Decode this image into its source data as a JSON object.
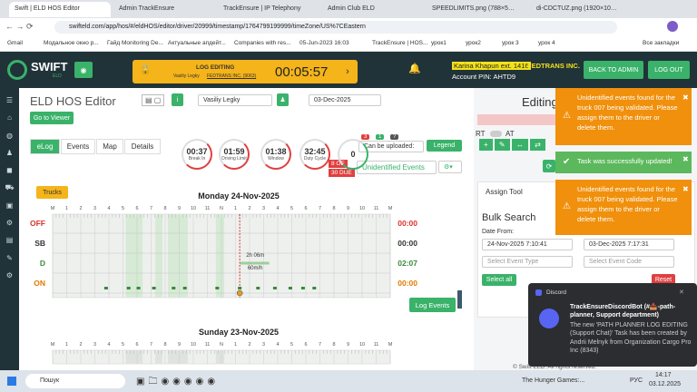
{
  "browser": {
    "tabs": [
      "Swift | ELD HOS Editor",
      "Admin TrackEnsure",
      "TrackEnsure | IP Telephony",
      "Admin Club ELD",
      "SPEEDLIMITS.png (788×5…",
      "di-CDCTUZ.png (1920×10…"
    ],
    "url": "swifteld.com/app/hos/#/eldHOS/editor/driver/20999/timestamp/1764799199999/timeZone/US%7CEastern",
    "bookmarks": [
      "Gmail",
      "Модальное окно р...",
      "Гайд Monitoring De...",
      "Актуальные апдейт...",
      "Companies with res...",
      "05-Jun-2023 16:03",
      "TrackEnsure | HOS...",
      "урок1",
      "урок2",
      "урок 3",
      "урок 4",
      "Все закладки"
    ]
  },
  "header": {
    "logo": "SWIFT",
    "logo_sub": "ELD",
    "log_editing": "LOG EDITING",
    "driver": "Vasiliy Legky",
    "company_code": "FEDTRANS INC. (9063)",
    "timer": "00:05:57",
    "user": "Karina Khapun ext. 1416",
    "company": "FEDTRANS INC.",
    "account_pin": "Account PIN: AHTD9",
    "back_to_admin": "BACK TO ADMIN",
    "log_out": "LOG OUT"
  },
  "editor": {
    "title": "ELD HOS Editor",
    "driver_select": "Vasiliy Legky",
    "date": "03-Dec-2025",
    "go_to_viewer": "Go to Viewer",
    "tabs": [
      "eLog",
      "Events",
      "Map",
      "Details"
    ],
    "clocks": [
      {
        "value": "00:37",
        "label": "Break In"
      },
      {
        "value": "01:59",
        "label": "Driving Limit"
      },
      {
        "value": "01:38",
        "label": "Window"
      },
      {
        "value": "32:45",
        "label": "Duty Cycle"
      },
      {
        "value": "0"
      }
    ],
    "badges": [
      "3",
      "1",
      "?"
    ],
    "can_be_uploaded": "Can be uploaded:",
    "legend": "Legend",
    "unidentified": "Unidentified Events",
    "oe": "8 OE",
    "due": "30 DUE",
    "trucks": "Trucks",
    "hour_labels": [
      "M",
      "1",
      "2",
      "3",
      "4",
      "5",
      "6",
      "7",
      "8",
      "9",
      "10",
      "11",
      "N",
      "1",
      "2",
      "3",
      "4",
      "5",
      "6",
      "7",
      "8",
      "9",
      "10",
      "11",
      "M"
    ],
    "days": [
      {
        "title": "Monday 24-Nov-2025",
        "statuses": [
          {
            "label": "OFF",
            "total": "00:00"
          },
          {
            "label": "SB",
            "total": "00:00"
          },
          {
            "label": "D",
            "total": "02:07"
          },
          {
            "label": "ON",
            "total": "00:00"
          }
        ],
        "segment_label": "2h 06m",
        "speed": "60m/h"
      },
      {
        "title": "Sunday 23-Nov-2025"
      }
    ],
    "log_events": "Log Events"
  },
  "right_panel": {
    "title": "Editing",
    "rt": "RT",
    "at": "AT",
    "assign_tool": "Assign Tool",
    "bulk_search": "Bulk Search",
    "date_from": "Date From:",
    "from": "24-Nov-2025 7:10:41",
    "to": "03-Dec-2025 7:17:31",
    "event_type": "Select Event Type",
    "event_code": "Select Event Code",
    "select_all": "Select all",
    "reset": "Reset"
  },
  "toasts": [
    "Unidentified events found for the truck 007 being validated. Please assign them to the driver or delete them.",
    "Task was successfully updated!",
    "Unidentified events found for the truck 007 being validated. Please assign them to the driver or delete them."
  ],
  "discord": {
    "app": "Discord",
    "title": "TrackEnsureDiscordBot (#📥-path-planner, Support department)",
    "body": "The new 'PATH PLANNER LOG EDITING (Support Chat)' Task has been created by Andrii Melnyk from Organization Cargo Pro Inc (8343)"
  },
  "footer": "© Swift ELD. All rights reserved.",
  "taskbar": {
    "search": "Пошук",
    "app": "The Hunger Games:...",
    "lang": "РУС",
    "time": "14:17",
    "date": "03.12.2025"
  }
}
